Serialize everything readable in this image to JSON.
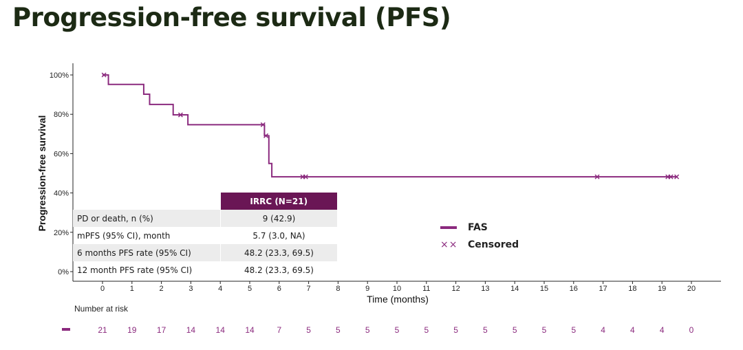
{
  "page_title": "Progression-free survival (PFS)",
  "colors": {
    "curve": "#8b2a7e",
    "header": "#6a1655",
    "title": "#1c2a14"
  },
  "chart_data": {
    "type": "line",
    "subtype": "kaplan-meier",
    "xlabel": "Time (months)",
    "ylabel": "Progression-free survival",
    "xlim": [
      0,
      20
    ],
    "ylim": [
      0,
      100
    ],
    "x_ticks": [
      0,
      1,
      2,
      3,
      4,
      5,
      6,
      7,
      8,
      9,
      10,
      11,
      12,
      13,
      14,
      15,
      16,
      17,
      18,
      19,
      20
    ],
    "y_ticks": [
      0,
      20,
      40,
      60,
      80,
      100
    ],
    "y_tick_labels": [
      "0%",
      "20%",
      "40%",
      "60%",
      "80%",
      "100%"
    ],
    "series": [
      {
        "name": "FAS",
        "steps": [
          {
            "x": 0,
            "y": 100
          },
          {
            "x": 0.2,
            "y": 95.2
          },
          {
            "x": 1.4,
            "y": 90.2
          },
          {
            "x": 1.6,
            "y": 85.0
          },
          {
            "x": 2.4,
            "y": 79.7
          },
          {
            "x": 2.9,
            "y": 74.7
          },
          {
            "x": 5.5,
            "y": 69.1
          },
          {
            "x": 5.65,
            "y": 55.0
          },
          {
            "x": 5.75,
            "y": 48.2
          },
          {
            "x": 19.5,
            "y": 48.2
          }
        ],
        "censored": [
          {
            "x": 0.05,
            "y": 100
          },
          {
            "x": 2.65,
            "y": 79.7
          },
          {
            "x": 5.45,
            "y": 74.7
          },
          {
            "x": 5.55,
            "y": 69.1
          },
          {
            "x": 6.8,
            "y": 48.2
          },
          {
            "x": 6.9,
            "y": 48.2
          },
          {
            "x": 16.8,
            "y": 48.2
          },
          {
            "x": 19.2,
            "y": 48.2
          },
          {
            "x": 19.3,
            "y": 48.2
          },
          {
            "x": 19.5,
            "y": 48.2
          }
        ]
      }
    ],
    "legend": [
      {
        "label": "FAS",
        "symbol": "line"
      },
      {
        "label": "Censored",
        "symbol": "××"
      }
    ],
    "risk_table": {
      "title": "Number at risk",
      "times": [
        0,
        1,
        2,
        3,
        4,
        5,
        6,
        7,
        8,
        9,
        10,
        11,
        12,
        13,
        14,
        15,
        16,
        17,
        18,
        19,
        20
      ],
      "counts": [
        "21",
        "19",
        "17",
        "14",
        "14",
        "14",
        "7",
        "5",
        "5",
        "5",
        "5",
        "5",
        "5",
        "5",
        "5",
        "5",
        "5",
        "4",
        "4",
        "4",
        "0"
      ]
    }
  },
  "stats_table": {
    "header": "IRRC (N=21)",
    "rows": [
      {
        "label": "PD or death, n (%)",
        "value": "9 (42.9)"
      },
      {
        "label": "mPFS (95% CI), month",
        "value": "5.7 (3.0, NA)"
      },
      {
        "label": "6 months PFS rate (95% CI)",
        "value": "48.2 (23.3, 69.5)"
      },
      {
        "label": "12 month PFS rate (95% CI)",
        "value": "48.2 (23.3, 69.5)"
      }
    ]
  }
}
